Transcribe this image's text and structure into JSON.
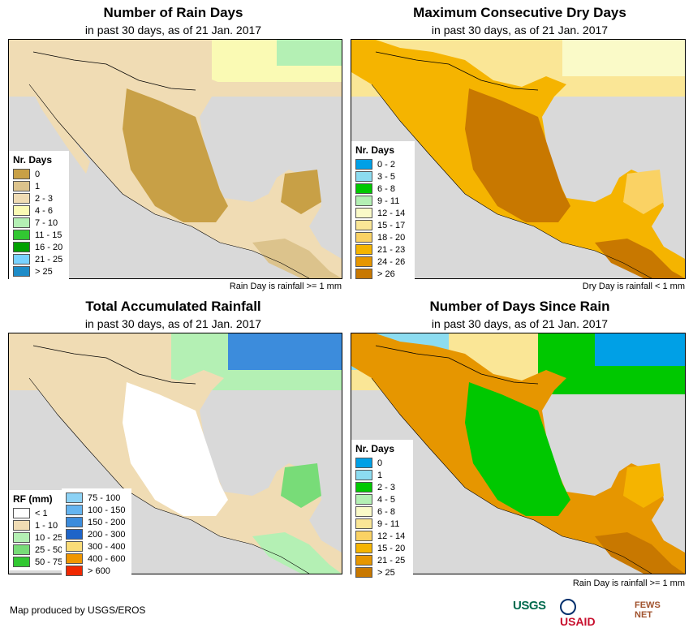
{
  "panels": [
    {
      "title": "Number of Rain Days",
      "subtitle": "in past 30 days, as of 21 Jan. 2017",
      "legend_title": "Nr. Days",
      "note": "Rain Day is rainfall >= 1 mm",
      "legend": [
        {
          "label": "0",
          "color": "#c8a046"
        },
        {
          "label": "1",
          "color": "#dcc38c"
        },
        {
          "label": "2 - 3",
          "color": "#f0dcb4"
        },
        {
          "label": "4 - 6",
          "color": "#fafab4"
        },
        {
          "label": "7 - 10",
          "color": "#b4f0b4"
        },
        {
          "label": "11 - 15",
          "color": "#32c832"
        },
        {
          "label": "16 - 20",
          "color": "#00a000"
        },
        {
          "label": "21 - 25",
          "color": "#78d2ff"
        },
        {
          "label": "> 25",
          "color": "#1e8cc8"
        }
      ]
    },
    {
      "title": "Maximum Consecutive Dry Days",
      "subtitle": "in past 30 days, as of 21 Jan. 2017",
      "legend_title": "Nr. Days",
      "note": "Dry Day is rainfall < 1 mm",
      "legend": [
        {
          "label": "0 - 2",
          "color": "#00a0e6"
        },
        {
          "label": "3 - 5",
          "color": "#8cdcf0"
        },
        {
          "label": "6 - 8",
          "color": "#00c800"
        },
        {
          "label": "9 - 11",
          "color": "#b4f0b4"
        },
        {
          "label": "12 - 14",
          "color": "#fafac8"
        },
        {
          "label": "15 - 17",
          "color": "#fae696"
        },
        {
          "label": "18 - 20",
          "color": "#fad264"
        },
        {
          "label": "21 - 23",
          "color": "#f5b400"
        },
        {
          "label": "24 - 26",
          "color": "#e69600"
        },
        {
          "label": "> 26",
          "color": "#c87800"
        }
      ]
    },
    {
      "title": "Total Accumulated Rainfall",
      "subtitle": "in past 30 days, as of 21 Jan. 2017",
      "legend_title": "RF (mm)",
      "note": "",
      "legend": [
        {
          "label": "< 1",
          "color": "#ffffff"
        },
        {
          "label": "1 - 10",
          "color": "#f0dcb4"
        },
        {
          "label": "10 - 25",
          "color": "#b4f0b4"
        },
        {
          "label": "25 - 50",
          "color": "#78dc78"
        },
        {
          "label": "50 - 75",
          "color": "#32c832"
        }
      ],
      "legend2": [
        {
          "label": "75 - 100",
          "color": "#8cd2f5"
        },
        {
          "label": "100 - 150",
          "color": "#64b4f0"
        },
        {
          "label": "150 - 200",
          "color": "#3c8cdc"
        },
        {
          "label": "200 - 300",
          "color": "#1e64c8"
        },
        {
          "label": "300 - 400",
          "color": "#fadc78"
        },
        {
          "label": "400 - 600",
          "color": "#f09600"
        },
        {
          "label": "> 600",
          "color": "#f02800"
        }
      ]
    },
    {
      "title": "Number of Days Since Rain",
      "subtitle": "in past 30 days, as of 21 Jan. 2017",
      "legend_title": "Nr. Days",
      "note": "Rain Day is rainfall >= 1 mm",
      "legend": [
        {
          "label": "0",
          "color": "#00a0e6"
        },
        {
          "label": "1",
          "color": "#8cdcf0"
        },
        {
          "label": "2 - 3",
          "color": "#00c800"
        },
        {
          "label": "4 - 5",
          "color": "#b4f0b4"
        },
        {
          "label": "6 - 8",
          "color": "#fafac8"
        },
        {
          "label": "9 - 11",
          "color": "#fae696"
        },
        {
          "label": "12 - 14",
          "color": "#fad264"
        },
        {
          "label": "15 - 20",
          "color": "#f5b400"
        },
        {
          "label": "21 - 25",
          "color": "#e69600"
        },
        {
          "label": "> 25",
          "color": "#c87800"
        }
      ]
    }
  ],
  "footer": {
    "credit": "Map produced by USGS/EROS",
    "logos": [
      "USGS",
      "USAID",
      "FEWS NET"
    ]
  },
  "colors": {
    "ocean": "#d9d9d9",
    "border": "#000000"
  }
}
